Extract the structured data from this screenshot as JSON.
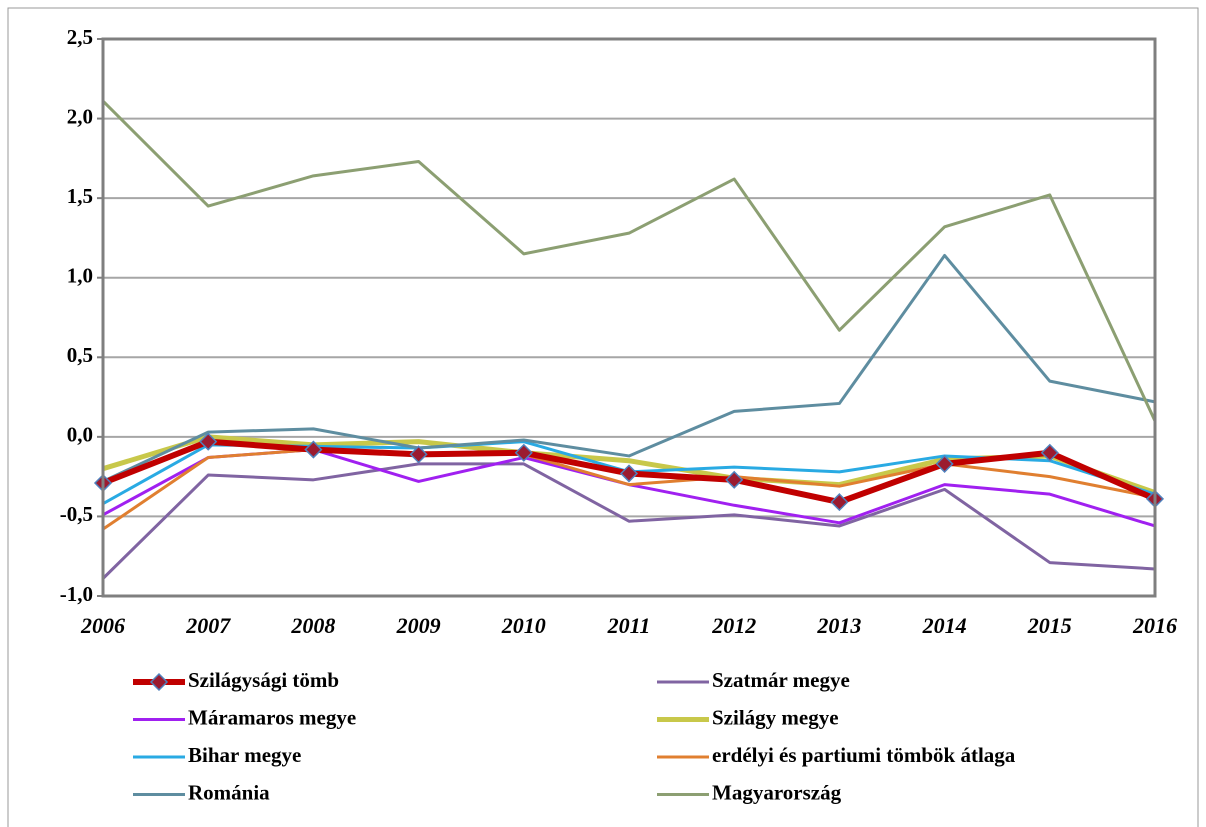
{
  "chart_data": {
    "type": "line",
    "categories": [
      "2006",
      "2007",
      "2008",
      "2009",
      "2010",
      "2011",
      "2012",
      "2013",
      "2014",
      "2015",
      "2016"
    ],
    "ylim": [
      -1.0,
      2.5
    ],
    "yticks": [
      {
        "value": -1.0,
        "label": "-1,0"
      },
      {
        "value": -0.5,
        "label": "-0,5"
      },
      {
        "value": 0.0,
        "label": "0,0"
      },
      {
        "value": 0.5,
        "label": "0,5"
      },
      {
        "value": 1.0,
        "label": "1,0"
      },
      {
        "value": 1.5,
        "label": "1,5"
      },
      {
        "value": 2.0,
        "label": "2,0"
      },
      {
        "value": 2.5,
        "label": "2,5"
      }
    ],
    "grid": true,
    "legend": "bottom",
    "series": [
      {
        "name": "Szilágysági tömb",
        "color": "#c00000",
        "line_width": 6,
        "marker": "diamond",
        "values": [
          -0.29,
          -0.03,
          -0.08,
          -0.11,
          -0.1,
          -0.23,
          -0.27,
          -0.41,
          -0.17,
          -0.1,
          -0.39
        ]
      },
      {
        "name": "Szatmár megye",
        "color": "#8064a2",
        "line_width": 3,
        "values": [
          -0.89,
          -0.24,
          -0.27,
          -0.17,
          -0.17,
          -0.53,
          -0.49,
          -0.56,
          -0.33,
          -0.79,
          -0.83
        ]
      },
      {
        "name": "Máramaros megye",
        "color": "#a020f0",
        "line_width": 3,
        "values": [
          -0.49,
          -0.13,
          -0.08,
          -0.28,
          -0.13,
          -0.3,
          -0.43,
          -0.54,
          -0.3,
          -0.36,
          -0.56
        ]
      },
      {
        "name": "Szilágy megye",
        "color": "#c8c84a",
        "line_width": 5,
        "values": [
          -0.2,
          0.0,
          -0.05,
          -0.03,
          -0.1,
          -0.15,
          -0.26,
          -0.3,
          -0.14,
          -0.12,
          -0.35
        ]
      },
      {
        "name": "Bihar megye",
        "color": "#29aae3",
        "line_width": 3,
        "values": [
          -0.42,
          -0.05,
          -0.06,
          -0.07,
          -0.03,
          -0.22,
          -0.19,
          -0.22,
          -0.12,
          -0.15,
          -0.36
        ]
      },
      {
        "name": "erdélyi és partiumi tömbök átlaga",
        "color": "#e07f30",
        "line_width": 3,
        "values": [
          -0.58,
          -0.13,
          -0.08,
          -0.1,
          -0.11,
          -0.3,
          -0.25,
          -0.31,
          -0.17,
          -0.25,
          -0.38
        ]
      },
      {
        "name": "Románia",
        "color": "#5e8da0",
        "line_width": 3,
        "values": [
          -0.28,
          0.03,
          0.05,
          -0.07,
          -0.02,
          -0.12,
          0.16,
          0.21,
          1.14,
          0.35,
          0.22
        ]
      },
      {
        "name": "Magyarország",
        "color": "#8c9f72",
        "line_width": 3,
        "values": [
          2.11,
          1.45,
          1.64,
          1.73,
          1.15,
          1.28,
          1.62,
          0.67,
          1.32,
          1.52,
          0.1
        ]
      }
    ]
  }
}
